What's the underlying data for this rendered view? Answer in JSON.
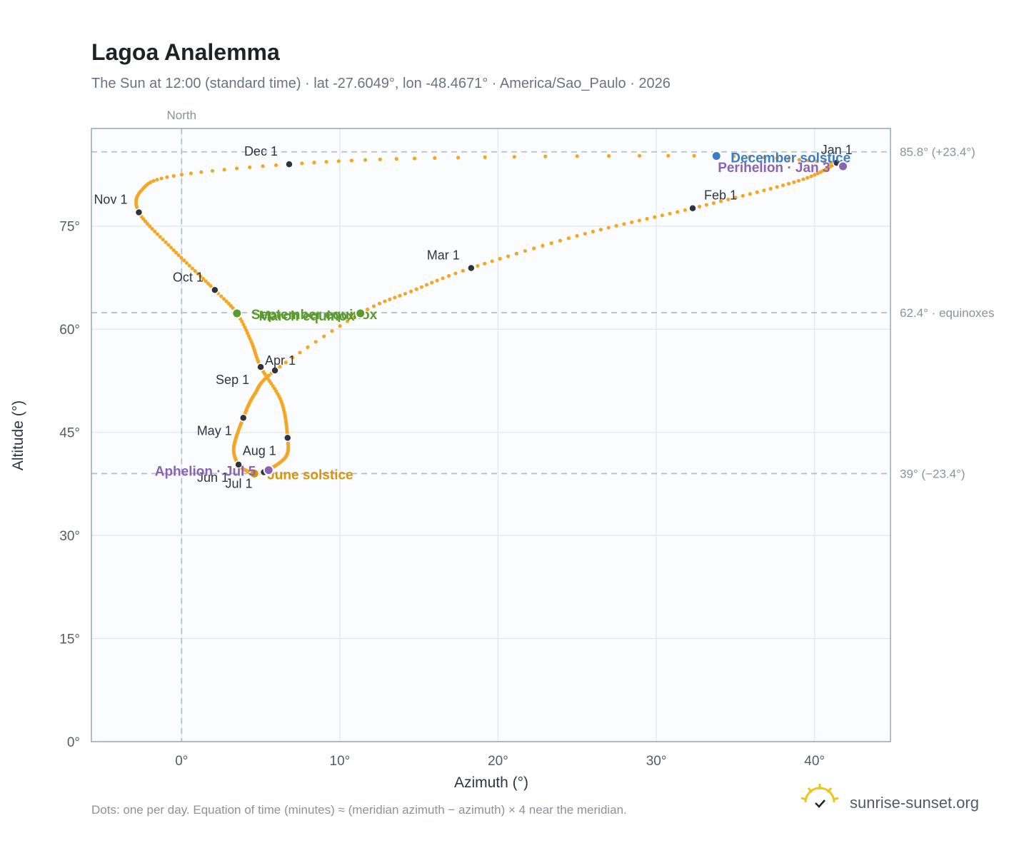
{
  "colors": {
    "path": "#f5a623",
    "month_marker": "#2f343b",
    "solstice_dec": "#3b7cc4",
    "solstice_jun": "#d4960f",
    "equinox": "#5a9a2e",
    "apsis": "#8a63b3",
    "grid": "#e5eaf0",
    "plot_bg": "#fafcfe",
    "frame": "#9aa6b4",
    "refline": "#b4c0cc"
  },
  "header": {
    "title": "Lagoa Analemma",
    "subtitle": "The Sun at 12:00 (standard time) · lat -27.6049°, lon -48.4671° · America/Sao_Paulo · 2026"
  },
  "footer": {
    "note": "Dots: one per day. Equation of time (minutes) ≈ (meridian azimuth − azimuth) × 4 near the meridian.",
    "brand": "sunrise-sunset.org",
    "brand_icon": "sun-logo-icon"
  },
  "chart_data": {
    "type": "scatter",
    "title": "Lagoa Analemma",
    "xlabel": "Azimuth (°)",
    "ylabel": "Altitude (°)",
    "xlim": [
      -5.7,
      44.8
    ],
    "ylim": [
      0,
      89.2
    ],
    "xticks": [
      0,
      10,
      20,
      30,
      40
    ],
    "xtick_labels": [
      "0°",
      "10°",
      "20°",
      "30°",
      "40°"
    ],
    "yticks": [
      0,
      15,
      30,
      45,
      60,
      75
    ],
    "ytick_labels": [
      "0°",
      "15°",
      "30°",
      "45°",
      "60°",
      "75°"
    ],
    "grid": true,
    "north_marker": {
      "azimuth": 0,
      "label": "North"
    },
    "reference_lines": [
      {
        "altitude": 85.8,
        "label": "85.8° (+23.4°)"
      },
      {
        "altitude": 62.4,
        "label": "62.4° · equinoxes"
      },
      {
        "altitude": 39.0,
        "label": "39° (−23.4°)"
      }
    ],
    "analemma_key_points": [
      {
        "day": 1,
        "az": 41.4,
        "alt": 84.2
      },
      {
        "day": 16,
        "az": 39.0,
        "alt": 81.6
      },
      {
        "day": 32,
        "az": 32.3,
        "alt": 77.6
      },
      {
        "day": 46,
        "az": 25.5,
        "alt": 73.9
      },
      {
        "day": 60,
        "az": 18.3,
        "alt": 68.9
      },
      {
        "day": 70,
        "az": 14.5,
        "alt": 65.5
      },
      {
        "day": 79,
        "az": 11.3,
        "alt": 62.3
      },
      {
        "day": 91,
        "az": 5.9,
        "alt": 54.0
      },
      {
        "day": 106,
        "az": 4.6,
        "alt": 50.5
      },
      {
        "day": 121,
        "az": 3.9,
        "alt": 47.1
      },
      {
        "day": 141,
        "az": 3.3,
        "alt": 42.8
      },
      {
        "day": 152,
        "az": 3.6,
        "alt": 40.3
      },
      {
        "day": 161,
        "az": 4.2,
        "alt": 39.3
      },
      {
        "day": 172,
        "az": 4.6,
        "alt": 39.0
      },
      {
        "day": 182,
        "az": 5.2,
        "alt": 39.2
      },
      {
        "day": 186,
        "az": 5.5,
        "alt": 39.5
      },
      {
        "day": 200,
        "az": 6.6,
        "alt": 41.5
      },
      {
        "day": 213,
        "az": 6.7,
        "alt": 44.2
      },
      {
        "day": 230,
        "az": 6.3,
        "alt": 49.5
      },
      {
        "day": 244,
        "az": 5.0,
        "alt": 54.5
      },
      {
        "day": 255,
        "az": 4.4,
        "alt": 58.2
      },
      {
        "day": 265,
        "az": 3.5,
        "alt": 62.3
      },
      {
        "day": 274,
        "az": 2.1,
        "alt": 65.7
      },
      {
        "day": 290,
        "az": -0.5,
        "alt": 71.5
      },
      {
        "day": 305,
        "az": -2.7,
        "alt": 77.0
      },
      {
        "day": 315,
        "az": -2.5,
        "alt": 80.3
      },
      {
        "day": 325,
        "az": -0.5,
        "alt": 82.3
      },
      {
        "day": 335,
        "az": 6.8,
        "alt": 84.0
      },
      {
        "day": 345,
        "az": 16.0,
        "alt": 84.9
      },
      {
        "day": 355,
        "az": 33.8,
        "alt": 85.2
      },
      {
        "day": 366,
        "az": 41.4,
        "alt": 84.2
      }
    ],
    "months": [
      {
        "label": "Jan 1",
        "day": 1,
        "az": 41.4,
        "alt": 84.2,
        "anchor": "end",
        "dx": 22,
        "dy": -12
      },
      {
        "label": "Feb 1",
        "day": 32,
        "az": 32.3,
        "alt": 77.6,
        "anchor": "start",
        "dx": 16,
        "dy": -12
      },
      {
        "label": "Mar 1",
        "day": 60,
        "az": 18.3,
        "alt": 68.9,
        "anchor": "end",
        "dx": -16,
        "dy": -12
      },
      {
        "label": "Apr 1",
        "day": 91,
        "az": 5.9,
        "alt": 54.0,
        "anchor": "start",
        "dx": -14,
        "dy": -8
      },
      {
        "label": "May 1",
        "day": 121,
        "az": 3.9,
        "alt": 47.1,
        "anchor": "end",
        "dx": -16,
        "dy": 24
      },
      {
        "label": "Jun 1",
        "day": 152,
        "az": 3.6,
        "alt": 40.3,
        "anchor": "end",
        "dx": -14,
        "dy": 24
      },
      {
        "label": "Jul 1",
        "day": 182,
        "az": 5.2,
        "alt": 39.2,
        "anchor": "end",
        "dx": -16,
        "dy": 22
      },
      {
        "label": "Aug 1",
        "day": 213,
        "az": 6.7,
        "alt": 44.2,
        "anchor": "end",
        "dx": -16,
        "dy": 24
      },
      {
        "label": "Sep 1",
        "day": 244,
        "az": 5.0,
        "alt": 54.5,
        "anchor": "end",
        "dx": -16,
        "dy": 24
      },
      {
        "label": "Oct 1",
        "day": 274,
        "az": 2.1,
        "alt": 65.7,
        "anchor": "end",
        "dx": -16,
        "dy": -12
      },
      {
        "label": "Nov 1",
        "day": 305,
        "az": -2.7,
        "alt": 77.0,
        "anchor": "end",
        "dx": -16,
        "dy": -12
      },
      {
        "label": "Dec 1",
        "day": 335,
        "az": 6.8,
        "alt": 84.0,
        "anchor": "end",
        "dx": -16,
        "dy": -12
      }
    ],
    "events": [
      {
        "label": "December solstice",
        "az": 33.8,
        "alt": 85.2,
        "color_key": "solstice_dec",
        "anchor": "start",
        "dx": 20,
        "dy": 9
      },
      {
        "label": "Perihelion · Jan 3",
        "az": 41.8,
        "alt": 83.7,
        "color_key": "apsis",
        "anchor": "end",
        "dx": -18,
        "dy": 8
      },
      {
        "label": "September equinox",
        "az": 3.5,
        "alt": 62.3,
        "color_key": "equinox",
        "anchor": "start",
        "dx": 20,
        "dy": 8
      },
      {
        "label": "March equinox",
        "az": 11.3,
        "alt": 62.3,
        "color_key": "equinox",
        "anchor": "end",
        "dx": -8,
        "dy": 10
      },
      {
        "label": "June solstice",
        "az": 4.6,
        "alt": 39.0,
        "color_key": "solstice_jun",
        "anchor": "start",
        "dx": 18,
        "dy": 8
      },
      {
        "label": "Aphelion · Jul 5",
        "az": 5.5,
        "alt": 39.5,
        "color_key": "apsis",
        "anchor": "end",
        "dx": -18,
        "dy": 8
      }
    ]
  }
}
